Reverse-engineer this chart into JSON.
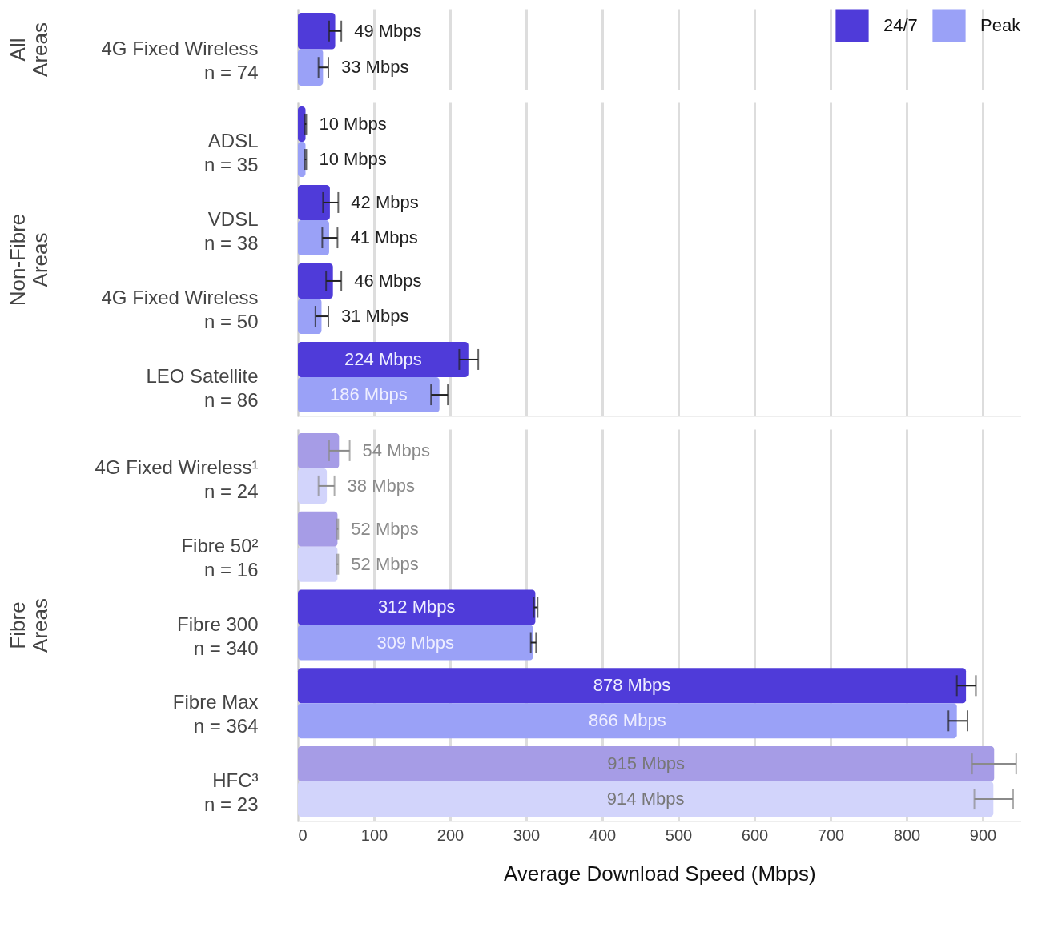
{
  "chart_data": [
    {
      "type": "bar",
      "orientation": "horizontal",
      "ylabel": "All\nAreas",
      "categories": [
        "4G Fixed Wireless\nn = 74"
      ],
      "xlim": [
        0,
        950
      ],
      "xticks": [
        0,
        100,
        200,
        300,
        400,
        500,
        600,
        700,
        800,
        900
      ],
      "grid": "x",
      "tick_labels": "y",
      "legend": "top right",
      "series": [
        {
          "name": "24/7",
          "color": "#4f3bd9",
          "values": [
            49
          ],
          "errors": [
            [
              41,
              57
            ]
          ],
          "value_labels": [
            "49 Mbps"
          ],
          "colors": [
            "#4f3bd9"
          ]
        },
        {
          "name": "Peak",
          "color": "#9aa1f7",
          "values": [
            33
          ],
          "errors": [
            [
              27,
              40
            ]
          ],
          "value_labels": [
            "33 Mbps"
          ],
          "colors": [
            "#9aa1f7"
          ]
        }
      ]
    },
    {
      "type": "bar",
      "orientation": "horizontal",
      "ylabel": "Non-Fibre\nAreas",
      "categories": [
        "ADSL\nn = 35",
        "VDSL\nn = 38",
        "4G Fixed Wireless\nn = 50",
        "LEO Satellite\nn = 86"
      ],
      "xlim": [
        0,
        950
      ],
      "xticks": [
        0,
        100,
        200,
        300,
        400,
        500,
        600,
        700,
        800,
        900
      ],
      "grid": "x",
      "tick_labels": "y",
      "series": [
        {
          "name": "24/7",
          "color": "#4f3bd9",
          "values": [
            10,
            42,
            46,
            224
          ],
          "errors": [
            [
              9,
              11
            ],
            [
              33,
              53
            ],
            [
              37,
              57
            ],
            [
              212,
              237
            ]
          ],
          "value_labels": [
            "10 Mbps",
            "42 Mbps",
            "46 Mbps",
            "224 Mbps"
          ],
          "colors": [
            "#4f3bd9",
            "#4f3bd9",
            "#4f3bd9",
            "#4f3bd9"
          ]
        },
        {
          "name": "Peak",
          "color": "#9aa1f7",
          "values": [
            10,
            41,
            31,
            186
          ],
          "errors": [
            [
              9,
              11
            ],
            [
              32,
              52
            ],
            [
              23,
              40
            ],
            [
              175,
              197
            ]
          ],
          "value_labels": [
            "10 Mbps",
            "41 Mbps",
            "31 Mbps",
            "186 Mbps"
          ],
          "colors": [
            "#9aa1f7",
            "#9aa1f7",
            "#9aa1f7",
            "#9aa1f7"
          ]
        }
      ]
    },
    {
      "type": "bar",
      "orientation": "horizontal",
      "ylabel": "Fibre\nAreas",
      "xlabel": "Average Download Speed (Mbps)",
      "categories": [
        "4G Fixed Wireless¹\nn = 24",
        "Fibre 50²\nn = 16",
        "Fibre 300\nn = 340",
        "Fibre Max\nn = 364",
        "HFC³\nn = 23"
      ],
      "xlim": [
        0,
        950
      ],
      "xticks": [
        0,
        100,
        200,
        300,
        400,
        500,
        600,
        700,
        800,
        900
      ],
      "grid": "x",
      "series": [
        {
          "name": "24/7",
          "color": "#4f3bd9",
          "values": [
            54,
            52,
            312,
            878,
            915
          ],
          "errors": [
            [
              41,
              68
            ],
            [
              51,
              53
            ],
            [
              310,
              315
            ],
            [
              866,
              891
            ],
            [
              886,
              944
            ]
          ],
          "value_labels": [
            "54 Mbps",
            "52 Mbps",
            "312 Mbps",
            "878 Mbps",
            "915 Mbps"
          ],
          "colors": [
            "#a69ce6",
            "#a69ce6",
            "#4f3bd9",
            "#4f3bd9",
            "#a69ce6"
          ]
        },
        {
          "name": "Peak",
          "color": "#9aa1f7",
          "values": [
            38,
            52,
            309,
            866,
            914
          ],
          "errors": [
            [
              27,
              48
            ],
            [
              51,
              53
            ],
            [
              306,
              313
            ],
            [
              855,
              880
            ],
            [
              889,
              940
            ]
          ],
          "value_labels": [
            "38 Mbps",
            "52 Mbps",
            "309 Mbps",
            "866 Mbps",
            "914 Mbps"
          ],
          "colors": [
            "#d2d4fb",
            "#d2d4fb",
            "#9aa1f7",
            "#9aa1f7",
            "#d2d4fb"
          ]
        }
      ]
    }
  ]
}
